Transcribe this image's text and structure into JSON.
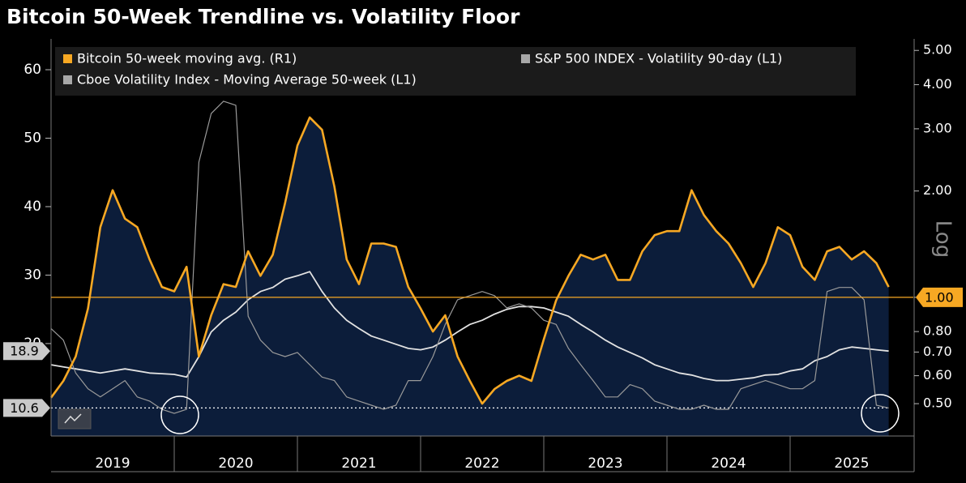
{
  "chart_data": {
    "type": "line",
    "title": "Bitcoin 50-Week Trendline vs. Volatility Floor",
    "x": [
      2019,
      2019.1,
      2019.2,
      2019.3,
      2019.4,
      2019.5,
      2019.6,
      2019.7,
      2019.8,
      2019.9,
      2020,
      2020.1,
      2020.2,
      2020.3,
      2020.4,
      2020.5,
      2020.6,
      2020.7,
      2020.8,
      2020.9,
      2021,
      2021.1,
      2021.2,
      2021.3,
      2021.4,
      2021.5,
      2021.6,
      2021.7,
      2021.8,
      2021.9,
      2022,
      2022.1,
      2022.2,
      2022.3,
      2022.4,
      2022.5,
      2022.6,
      2022.7,
      2022.8,
      2022.9,
      2023,
      2023.1,
      2023.2,
      2023.3,
      2023.4,
      2023.5,
      2023.6,
      2023.7,
      2023.8,
      2023.9,
      2024,
      2024.1,
      2024.2,
      2024.3,
      2024.4,
      2024.5,
      2024.6,
      2024.7,
      2024.8,
      2024.9,
      2025,
      2025.1,
      2025.2,
      2025.3,
      2025.4,
      2025.5,
      2025.6,
      2025.7,
      2025.8
    ],
    "xlim": [
      2019,
      2026
    ],
    "xticks": [
      2020,
      2021,
      2022,
      2023,
      2024,
      2025
    ],
    "periods": [
      "2019",
      "2020",
      "2021",
      "2022",
      "2023",
      "2024",
      "2025"
    ],
    "ylim": [
      6.5,
      64.5
    ],
    "yticks": [
      20,
      30,
      40,
      50,
      60
    ],
    "y2lim": [
      0.405,
      5.39
    ],
    "y2scale": "log",
    "y2ticks": [
      {
        "value": 5,
        "label": "5.00"
      },
      {
        "value": 4,
        "label": "4.00"
      },
      {
        "value": 3,
        "label": "3.00"
      },
      {
        "value": 2,
        "label": "2.00"
      },
      {
        "value": 1,
        "label": "1.00"
      },
      {
        "value": 0.8,
        "label": "0.80"
      },
      {
        "value": 0.7,
        "label": "0.70"
      },
      {
        "value": 0.6,
        "label": "0.60"
      },
      {
        "value": 0.5,
        "label": "0.50"
      }
    ],
    "y2_axis_label": "Log",
    "legend": "top-left",
    "series": [
      {
        "name": "Bitcoin 50-week moving avg. (R1)",
        "color": "#f7a823",
        "axis": "y2",
        "fill": "#0c1d3a",
        "values": [
          0.52,
          0.58,
          0.68,
          0.93,
          1.58,
          2.01,
          1.67,
          1.58,
          1.28,
          1.07,
          1.04,
          1.22,
          0.68,
          0.89,
          1.09,
          1.07,
          1.35,
          1.15,
          1.32,
          1.85,
          2.69,
          3.23,
          2.98,
          2.06,
          1.28,
          1.09,
          1.42,
          1.42,
          1.39,
          1.07,
          0.93,
          0.8,
          0.89,
          0.68,
          0.58,
          0.5,
          0.55,
          0.58,
          0.6,
          0.58,
          0.76,
          0.98,
          1.15,
          1.32,
          1.28,
          1.32,
          1.12,
          1.12,
          1.35,
          1.5,
          1.54,
          1.54,
          2.01,
          1.71,
          1.54,
          1.42,
          1.25,
          1.07,
          1.25,
          1.58,
          1.5,
          1.22,
          1.12,
          1.35,
          1.39,
          1.28,
          1.35,
          1.25,
          1.07
        ]
      },
      {
        "name": "S&P 500 INDEX - Volatility 90-day (L1)",
        "color": "#9a9a9a",
        "axis": "y",
        "values": [
          22.2,
          20.5,
          15.7,
          13.4,
          12.2,
          13.4,
          14.6,
          12.2,
          11.6,
          10.4,
          9.8,
          10.4,
          46.5,
          53.6,
          55.4,
          54.8,
          24.0,
          20.5,
          18.7,
          18.1,
          18.7,
          16.9,
          15.1,
          14.6,
          12.2,
          11.6,
          11.0,
          10.4,
          11.0,
          14.6,
          14.6,
          18.1,
          22.8,
          26.4,
          27.0,
          27.6,
          27.0,
          25.2,
          25.8,
          25.2,
          23.4,
          22.8,
          19.3,
          16.9,
          14.6,
          12.2,
          12.2,
          14.0,
          13.4,
          11.6,
          11.0,
          10.4,
          10.4,
          11.0,
          10.4,
          10.4,
          13.4,
          14.0,
          14.6,
          14.0,
          13.4,
          13.4,
          14.6,
          27.6,
          28.2,
          28.2,
          26.4,
          11.0,
          10.6
        ]
      },
      {
        "name": "Cboe Volatility Index - Moving Average 50-week (L1)",
        "color": "#e2e2e2",
        "axis": "y",
        "values": [
          16.9,
          16.6,
          16.3,
          16.0,
          15.7,
          16.0,
          16.3,
          16.0,
          15.7,
          15.6,
          15.5,
          15.1,
          18.1,
          21.7,
          23.4,
          24.6,
          26.4,
          27.6,
          28.2,
          29.4,
          29.9,
          30.5,
          27.6,
          25.2,
          23.4,
          22.2,
          21.1,
          20.5,
          19.9,
          19.3,
          19.1,
          19.5,
          20.5,
          21.7,
          22.8,
          23.4,
          24.3,
          25.0,
          25.4,
          25.4,
          25.2,
          24.6,
          24.0,
          22.8,
          21.7,
          20.5,
          19.5,
          18.7,
          17.9,
          16.9,
          16.3,
          15.7,
          15.4,
          14.9,
          14.6,
          14.6,
          14.8,
          15.0,
          15.4,
          15.5,
          16.0,
          16.3,
          17.5,
          18.1,
          19.1,
          19.5,
          19.3,
          19.1,
          18.9
        ]
      }
    ],
    "reference_lines": [
      {
        "value": {
          "value": 1,
          "label": "1.00"
        },
        "axis": "y2",
        "color": "#f7a823"
      },
      {
        "value": 10.6,
        "axis": "y",
        "color": "#ffffff"
      }
    ]
  }
}
